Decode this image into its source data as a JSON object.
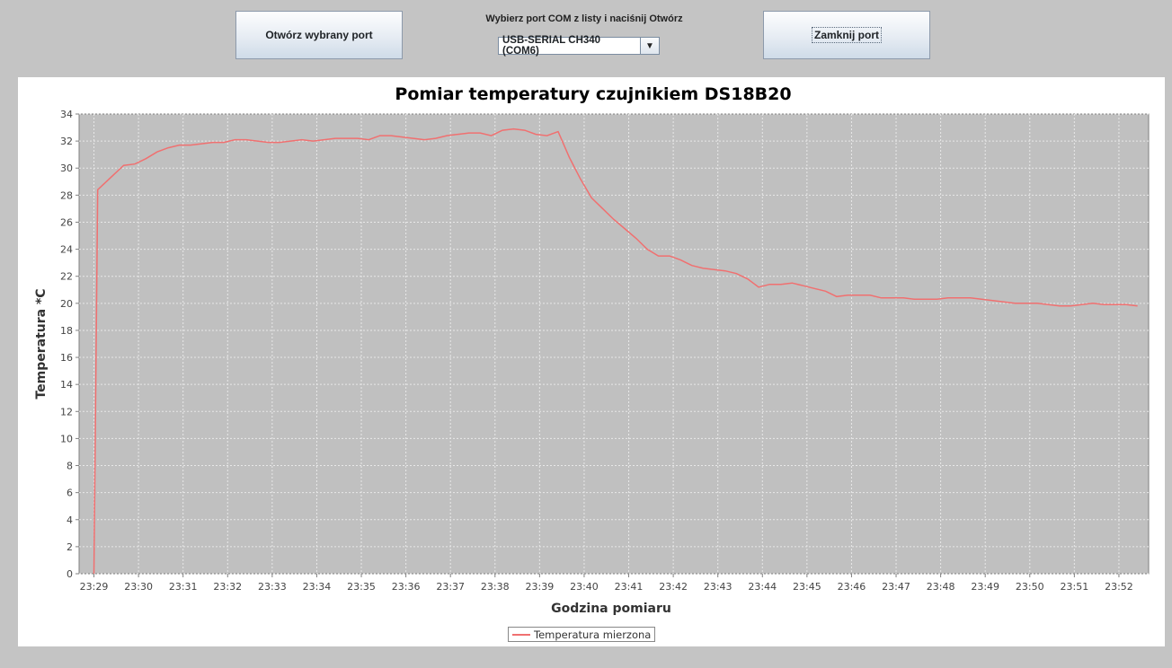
{
  "toolbar": {
    "open_label": "Otwórz wybrany port",
    "port_prompt": "Wybierz port COM z listy i naciśnij Otwórz",
    "port_selected": "USB-SERIAL CH340 (COM6)",
    "close_label": "Zamknij port"
  },
  "colors": {
    "plot_background": "#c0c0c0",
    "series_line": "#f07070",
    "gridline": "#e8e8e8"
  },
  "chart_data": {
    "type": "line",
    "title": "Pomiar temperatury czujnikiem DS18B20",
    "xlabel": "Godzina pomiaru",
    "ylabel": "Temperatura *C",
    "ylim": [
      0,
      34
    ],
    "xlim": [
      "23:28:40",
      "23:52:40"
    ],
    "x_ticks": [
      "23:29",
      "23:30",
      "23:31",
      "23:32",
      "23:33",
      "23:34",
      "23:35",
      "23:36",
      "23:37",
      "23:38",
      "23:39",
      "23:40",
      "23:41",
      "23:42",
      "23:43",
      "23:44",
      "23:45",
      "23:46",
      "23:47",
      "23:48",
      "23:49",
      "23:50",
      "23:51",
      "23:52"
    ],
    "y_ticks": [
      0,
      2,
      4,
      6,
      8,
      10,
      12,
      14,
      16,
      18,
      20,
      22,
      24,
      26,
      28,
      30,
      32,
      34
    ],
    "grid": true,
    "legend_position": "bottom-center",
    "series": [
      {
        "name": "Temperatura mierzona",
        "x": [
          "23:29:00",
          "23:29:05",
          "23:29:40",
          "23:29:55",
          "23:30:10",
          "23:30:25",
          "23:30:40",
          "23:30:55",
          "23:31:10",
          "23:31:25",
          "23:31:40",
          "23:31:55",
          "23:32:10",
          "23:32:25",
          "23:32:40",
          "23:32:55",
          "23:33:10",
          "23:33:25",
          "23:33:40",
          "23:33:55",
          "23:34:10",
          "23:34:25",
          "23:34:40",
          "23:34:55",
          "23:35:10",
          "23:35:25",
          "23:35:40",
          "23:35:55",
          "23:36:10",
          "23:36:25",
          "23:36:40",
          "23:36:55",
          "23:37:10",
          "23:37:25",
          "23:37:40",
          "23:37:55",
          "23:38:10",
          "23:38:25",
          "23:38:40",
          "23:38:55",
          "23:39:10",
          "23:39:25",
          "23:39:40",
          "23:39:55",
          "23:40:10",
          "23:40:25",
          "23:40:40",
          "23:40:55",
          "23:41:10",
          "23:41:25",
          "23:41:40",
          "23:41:55",
          "23:42:10",
          "23:42:25",
          "23:42:40",
          "23:42:55",
          "23:43:10",
          "23:43:25",
          "23:43:40",
          "23:43:55",
          "23:44:10",
          "23:44:25",
          "23:44:40",
          "23:44:55",
          "23:45:10",
          "23:45:25",
          "23:45:40",
          "23:45:55",
          "23:46:10",
          "23:46:25",
          "23:46:40",
          "23:46:55",
          "23:47:10",
          "23:47:25",
          "23:47:40",
          "23:47:55",
          "23:48:10",
          "23:48:25",
          "23:48:40",
          "23:48:55",
          "23:49:10",
          "23:49:25",
          "23:49:40",
          "23:49:55",
          "23:50:10",
          "23:50:25",
          "23:50:40",
          "23:50:55",
          "23:51:10",
          "23:51:25",
          "23:51:40",
          "23:51:55",
          "23:52:10",
          "23:52:25"
        ],
        "values": [
          0,
          28.4,
          30.2,
          30.3,
          30.7,
          31.2,
          31.5,
          31.7,
          31.7,
          31.8,
          31.9,
          31.9,
          32.1,
          32.1,
          32.0,
          31.9,
          31.9,
          32.0,
          32.1,
          32.0,
          32.1,
          32.2,
          32.2,
          32.2,
          32.1,
          32.4,
          32.4,
          32.3,
          32.2,
          32.1,
          32.2,
          32.4,
          32.5,
          32.6,
          32.6,
          32.4,
          32.8,
          32.9,
          32.8,
          32.5,
          32.4,
          32.7,
          30.8,
          29.2,
          27.8,
          27.0,
          26.2,
          25.5,
          24.8,
          24.0,
          23.5,
          23.5,
          23.2,
          22.8,
          22.6,
          22.5,
          22.4,
          22.2,
          21.8,
          21.2,
          21.4,
          21.4,
          21.5,
          21.3,
          21.1,
          20.9,
          20.5,
          20.6,
          20.6,
          20.6,
          20.4,
          20.4,
          20.4,
          20.3,
          20.3,
          20.3,
          20.4,
          20.4,
          20.4,
          20.3,
          20.2,
          20.1,
          20.0,
          20.0,
          20.0,
          19.9,
          19.8,
          19.8,
          19.9,
          20.0,
          19.9,
          19.9,
          19.9,
          19.8
        ]
      }
    ]
  }
}
